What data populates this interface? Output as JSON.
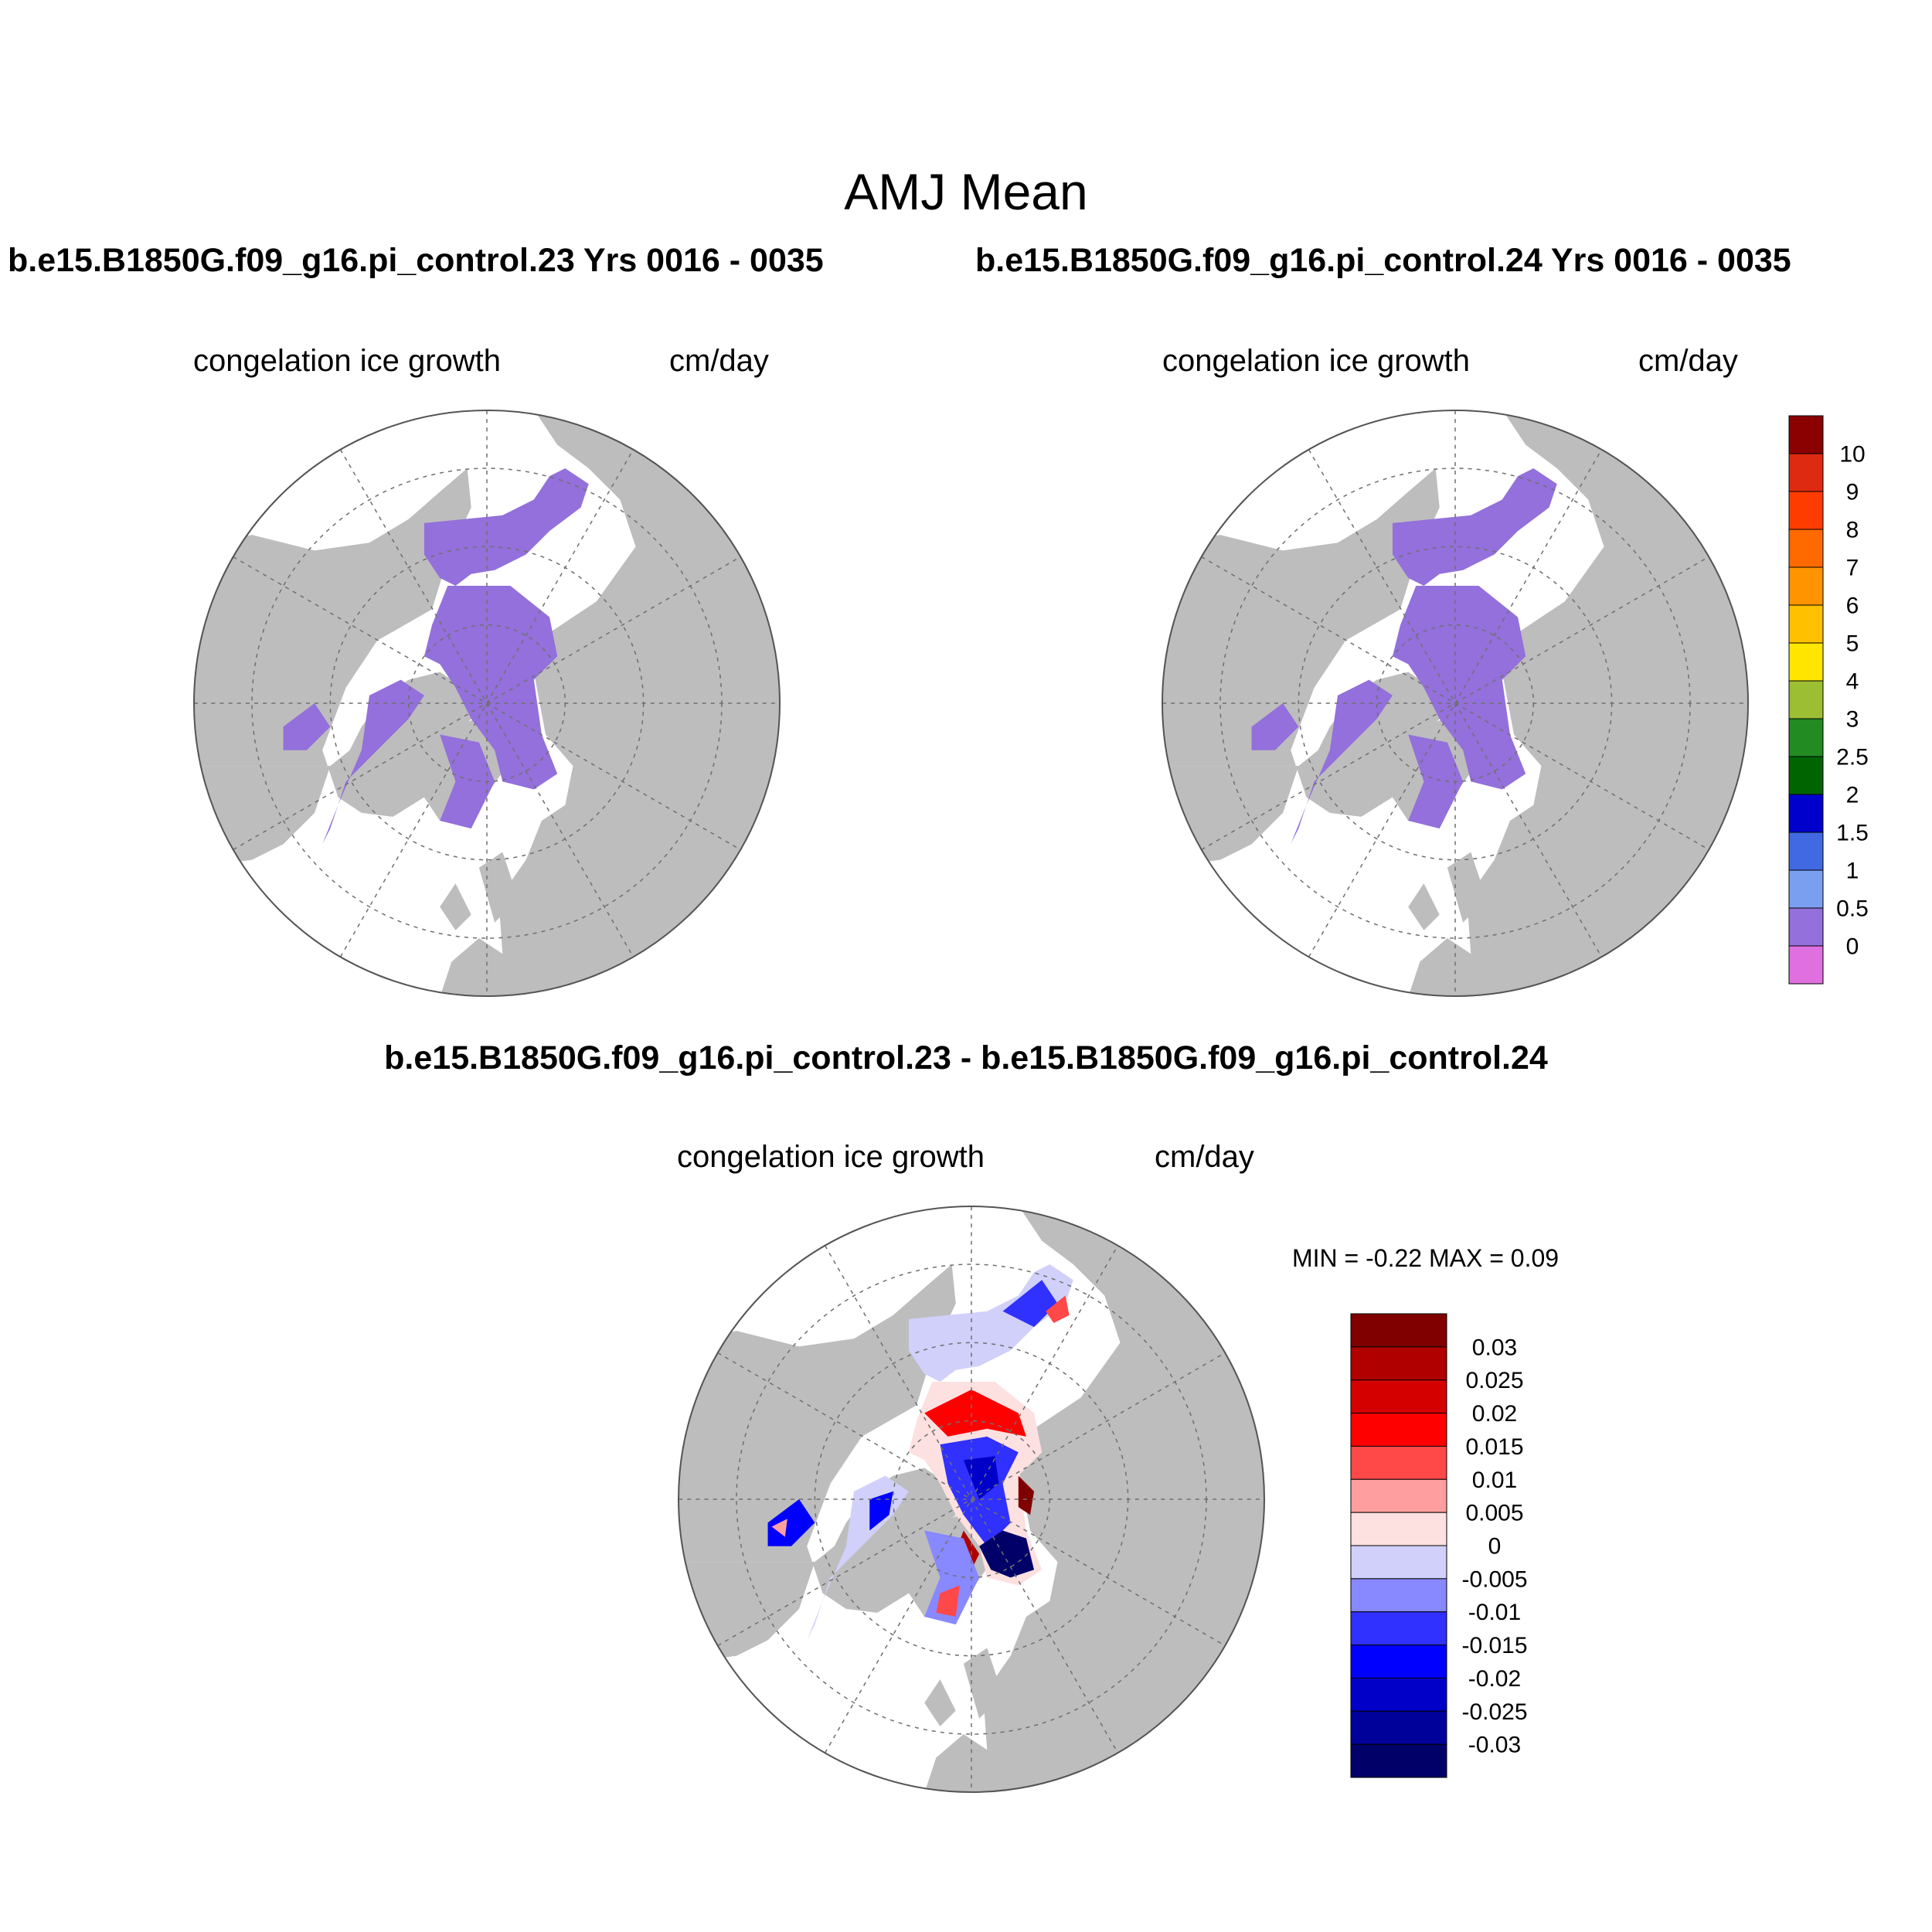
{
  "main_title": "AMJ Mean",
  "panel_left": {
    "run_title": "b.e15.B1850G.f09_g16.pi_control.23  Yrs 0016 - 0035",
    "variable": "congelation ice growth",
    "units": "cm/day"
  },
  "panel_right": {
    "run_title": "b.e15.B1850G.f09_g16.pi_control.24  Yrs 0016 - 0035",
    "variable": "congelation ice growth",
    "units": "cm/day"
  },
  "panel_diff": {
    "title": "b.e15.B1850G.f09_g16.pi_control.23 - b.e15.B1850G.f09_g16.pi_control.24",
    "variable": "congelation ice growth",
    "units": "cm/day",
    "minmax": "MIN =  -0.22 MAX =   0.09"
  },
  "colorbar_mean": {
    "labels": [
      "10",
      "9",
      "8",
      "7",
      "6",
      "5",
      "4",
      "3",
      "2.5",
      "2",
      "1.5",
      "1",
      "0.5",
      "0"
    ],
    "colors": [
      "#8b0000",
      "#dd2a10",
      "#ff3c00",
      "#ff6a00",
      "#ff9400",
      "#ffc000",
      "#ffe600",
      "#9cbe32",
      "#228b22",
      "#006400",
      "#0000cd",
      "#4169e1",
      "#7b9ff0",
      "#9370db",
      "#e070e0"
    ]
  },
  "colorbar_diff": {
    "labels": [
      "0.03",
      "0.025",
      "0.02",
      "0.015",
      "0.01",
      "0.005",
      "0",
      "-0.005",
      "-0.01",
      "-0.015",
      "-0.02",
      "-0.025",
      "-0.03"
    ],
    "colors": [
      "#800000",
      "#b00000",
      "#d40000",
      "#ff0000",
      "#ff4848",
      "#ff9e9e",
      "#fde0e0",
      "#d0d0fa",
      "#8888ff",
      "#3030ff",
      "#0000ff",
      "#0000c8",
      "#00009a",
      "#000068"
    ]
  },
  "colors": {
    "land": "#bdbdbd",
    "ice": "#9370db",
    "ocean": "#ffffff"
  }
}
